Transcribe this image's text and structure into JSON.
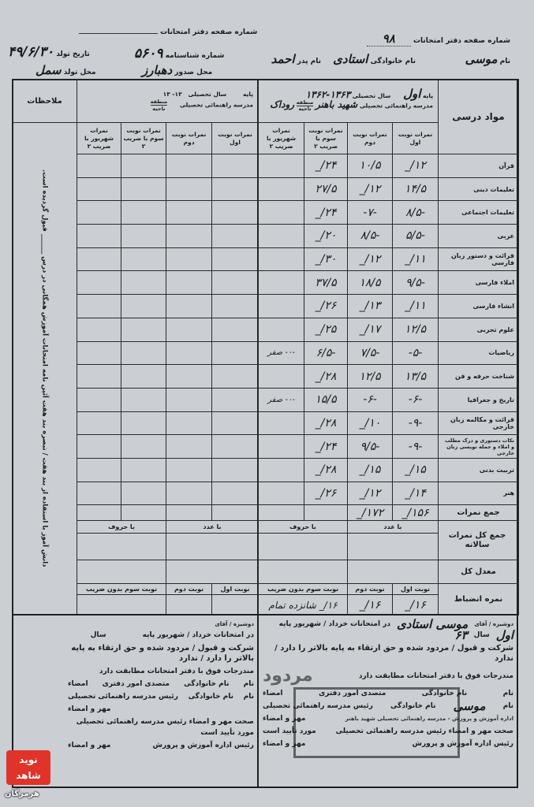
{
  "header_right": {
    "page_number_label": "شماره صفحه دفتر امتحانات",
    "page_number_value": "۹۸",
    "first_name_label": "نام",
    "first_name_value": "موسی",
    "last_name_label": "نام خانوادگی",
    "last_name_value": "استادی",
    "father_name_label": "نام پدر",
    "father_name_value": "احمد"
  },
  "header_left": {
    "page_number_label": "شماره صفحه دفتر امتحانات",
    "id_number_label": "شماره شناسنامه",
    "id_number_value": "۵۶۰۹",
    "birth_date_label": "تاریخ تولد",
    "birth_date_value": "۴۹/۶/۳۰",
    "issue_place_label": "محل صدور",
    "issue_place_value": "دهبارز",
    "birth_place_label": "محل تولد",
    "birth_place_value": "سمل"
  },
  "right_table": {
    "subjects_header": "مواد درسی",
    "grade_label": "پایه",
    "grade_value": "اول",
    "year_label": "سال تحصیلی",
    "year_value": "۱۳۶۳-۱۳۶۲",
    "school_label": "مدرسه راهنمائی تحصیلی",
    "school_value": "شهید باهنر",
    "region_label": "منطقه",
    "district_label": "ناحیه",
    "region_value": "روداک",
    "columns": [
      "نمرات نوبت اول",
      "نمرات نوبت دوم",
      "نمرات نوبت سوم با ضریب ۲",
      "نمرات شهریور با ضریب ۲"
    ],
    "rows": [
      {
        "subject": "قرآن",
        "t1": "۱۲/_",
        "t2": "۱۰/۵",
        "t3": "۲۴/_",
        "sh": ""
      },
      {
        "subject": "تعلیمات دینی",
        "t1": "۱۴/۵",
        "t2": "۱۲/_",
        "t3": "۲۷/۵",
        "sh": ""
      },
      {
        "subject": "تعلیمات اجتماعی",
        "t1": "-۸/۵",
        "t2": "-۷-",
        "t3": "۲۴/_",
        "sh": ""
      },
      {
        "subject": "عربی",
        "t1": "-۵/۵",
        "t2": "-۸/۵",
        "t3": "۲۰/_",
        "sh": ""
      },
      {
        "subject": "قرائت و دستور زبان فارسی",
        "t1": "۱۱/_",
        "t2": "۱۲/_",
        "t3": "۳۰/_",
        "sh": ""
      },
      {
        "subject": "املاء فارسی",
        "t1": "-۹/۵",
        "t2": "۱۸/۵",
        "t3": "۳۷/۵",
        "sh": ""
      },
      {
        "subject": "انشاء فارسی",
        "t1": "۱۱/_",
        "t2": "۱۳/_",
        "t3": "۲۶/_",
        "sh": ""
      },
      {
        "subject": "علوم تجربی",
        "t1": "۱۲/۵",
        "t2": "۱۷/_",
        "t3": "۲۵/_",
        "sh": ""
      },
      {
        "subject": "ریاضیات",
        "t1": "-۵-",
        "t2": "-۷/۵",
        "t3": "-۶/۵",
        "sh": "-۰- صفر"
      },
      {
        "subject": "شناخت حرفه و فن",
        "t1": "۱۳/۵",
        "t2": "۱۲/۵",
        "t3": "۲۸/_",
        "sh": ""
      },
      {
        "subject": "تاریخ و جغرافیا",
        "t1": "-۶-",
        "t2": "-۶-",
        "t3": "۱۵/۵",
        "sh": "-۰- صفر"
      },
      {
        "subject": "قرائت و مکالمه زبان خارجی",
        "t1": "-۹-",
        "t2": "۱۰/_",
        "t3": "۲۸/_",
        "sh": ""
      },
      {
        "subject": "نکات دستوری و درک مطلب و املاء و جمله نویسی زبان خارجی",
        "t1": "-۹-",
        "t2": "-۹/۵",
        "t3": "۲۴/_",
        "sh": ""
      },
      {
        "subject": "تربیت بدنی",
        "t1": "۱۵/_",
        "t2": "۱۵/_",
        "t3": "۲۸/_",
        "sh": ""
      },
      {
        "subject": "هنر",
        "t1": "۱۴/_",
        "t2": "۱۲/_",
        "t3": "۲۶/_",
        "sh": ""
      }
    ],
    "total_label": "جمع نمرات",
    "total_t1": "۱۵۶/_",
    "total_t2": "۱۷۲/_",
    "annual_label": "جمع کل نمرات سالانه",
    "by_number_label": "با عدد",
    "by_letters_label": "با حروف",
    "average_label": "معدل کل",
    "discipline_label": "نمره انضباط",
    "disc_t1_label": "نوبت اول",
    "disc_t2_label": "نوبت دوم",
    "disc_t3_label": "نوبت سوم بدون ضریب",
    "disc_t1": "۱۶/_",
    "disc_t2": "۱۶/_",
    "disc_t3": "۱۶/_ شانزده تمام"
  },
  "left_table": {
    "remarks_header": "ملاحظات",
    "grade_label": "پایه",
    "year_label": "سال تحصیلی",
    "year_value": "۱۳-  ۱۳",
    "school_label": "مدرسه راهنمائی تحصیلی",
    "region_label": "منطقه",
    "district_label": "ناحیه",
    "columns": [
      "نمرات نوبت اول",
      "نمرات نوبت دوم",
      "نمرات نوبت سوم با ضریب ۲",
      "نمرات شهریور با ضریب ۲"
    ],
    "remarks_text": "دانش آموز با استفاده از بند هفت / تبصره بند هفت آئین نامه امتحانات آموزش همگانی در درس ______ قبول گردیده است.",
    "by_number_label": "با عدد",
    "by_letters_label": "با حروف",
    "disc_t1_label": "نوبت اول",
    "disc_t2_label": "نوبت دوم",
    "disc_t3_label": "نوبت سوم بدون ضریب"
  },
  "footer_right": {
    "line1_prefix": "دوشیزه / آقای",
    "student_name": "موسی استادی",
    "line1_exam": "در امتحانات خرداد / شهریور پایه",
    "line1_grade": "اول",
    "line1_year_label": "سال",
    "line1_year": "۶۳",
    "line2": "شرکت و قبول / مردود شده و حق ارتقاء به پایه بالاتر را دارد / ندارد",
    "line3": "مندرجات فوق با دفتر امتحانات مطابقت دارد",
    "name_label": "نام",
    "last_name_label": "نام خانوادگی",
    "clerk_label": "متصدی امور دفتری",
    "signature_label": "امضاء",
    "principal_label": "رئیس مدرسه راهنمائی تحصیلی",
    "principal_name": "موسی",
    "seal_label": "مهر و امضاء",
    "verify_label": "صحت مهر و امضاء رئیس مدرسه راهنمائی تحصیلی",
    "approved_label": "مورد تأیید است",
    "office_head_label": "رئیس اداره آموزش و پرورش",
    "stamp_rejected": "مردود",
    "stamp_box_text": "اداره آموزش و پرورش - مدرسه راهنمائی تحصیلی شهید باهنر"
  },
  "footer_left": {
    "line1_prefix": "دوشیزه / آقای",
    "line1_exam": "در امتحانات خرداد / شهریور پایه",
    "line1_year_label": "سال",
    "line2": "شرکت و قبول / مردود شده و حق ارتقاء به پایه بالاتر را دارد / ندارد",
    "line3": "مندرجات فوق با دفتر امتحانات مطابقت دارد",
    "name_label": "نام",
    "last_name_label": "نام خانوادگی",
    "clerk_label": "متصدی امور دفتری",
    "signature_label": "امضاء",
    "principal_label": "رئیس مدرسه راهنمائی تحصیلی",
    "seal_label": "مهر و امضاء",
    "verify_label": "صحت مهر و امضاء رئیس مدرسه راهنمائی تحصیلی",
    "approved_label": "مورد تأیید است",
    "office_head_label": "رئیس اداره آموزش و پرورش",
    "seal_label2": "مهر و امضاء"
  },
  "watermark": {
    "brand": "نوید شاهد",
    "region": "هرمزگان",
    "color": "#e0332a"
  }
}
